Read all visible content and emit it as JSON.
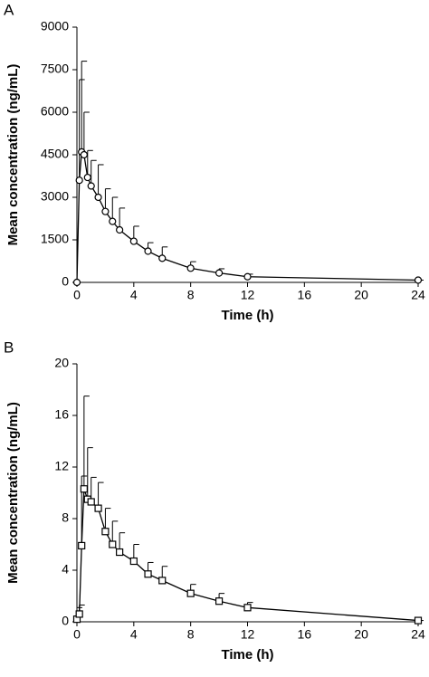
{
  "chart_data": [
    {
      "type": "line",
      "title": "A",
      "xlabel": "Time (h)",
      "ylabel": "Mean concentration (ng/mL)",
      "x": [
        0,
        0.17,
        0.33,
        0.5,
        0.75,
        1,
        1.5,
        2,
        2.5,
        3,
        4,
        5,
        6,
        8,
        10,
        12,
        24
      ],
      "series": [
        {
          "color": "#000000",
          "marker": "circle",
          "values": [
            0,
            3600,
            4600,
            4500,
            3700,
            3400,
            3000,
            2500,
            2150,
            1850,
            1450,
            1100,
            850,
            500,
            330,
            200,
            80
          ],
          "errors": [
            0,
            3550,
            3200,
            1500,
            950,
            900,
            1150,
            800,
            850,
            770,
            530,
            300,
            400,
            230,
            150,
            90,
            0
          ]
        }
      ],
      "xlim": [
        0,
        24
      ],
      "xticks": [
        0,
        4,
        8,
        12,
        16,
        20,
        24
      ],
      "ylim": [
        0,
        9000
      ],
      "yticks": [
        0,
        1500,
        3000,
        4500,
        6000,
        7500,
        9000
      ]
    },
    {
      "type": "line",
      "title": "B",
      "xlabel": "Time (h)",
      "ylabel": "Mean concentration (ng/mL)",
      "x": [
        0,
        0.17,
        0.33,
        0.5,
        0.75,
        1,
        1.5,
        2,
        2.5,
        3,
        4,
        5,
        6,
        8,
        10,
        12,
        24
      ],
      "series": [
        {
          "color": "#000000",
          "marker": "square",
          "values": [
            0.2,
            0.6,
            5.9,
            10.3,
            9.5,
            9.3,
            8.8,
            7.0,
            6.0,
            5.4,
            4.7,
            3.7,
            3.2,
            2.2,
            1.6,
            1.1,
            0.1
          ],
          "errors": [
            0.9,
            0.7,
            5.4,
            7.2,
            4.0,
            1.9,
            2.0,
            1.8,
            1.8,
            1.5,
            1.3,
            0.9,
            1.1,
            0.7,
            0.6,
            0.4,
            0
          ]
        }
      ],
      "xlim": [
        0,
        24
      ],
      "xticks": [
        0,
        4,
        8,
        12,
        16,
        20,
        24
      ],
      "ylim": [
        0,
        20
      ],
      "yticks": [
        0,
        4,
        8,
        12,
        16,
        20
      ]
    }
  ]
}
